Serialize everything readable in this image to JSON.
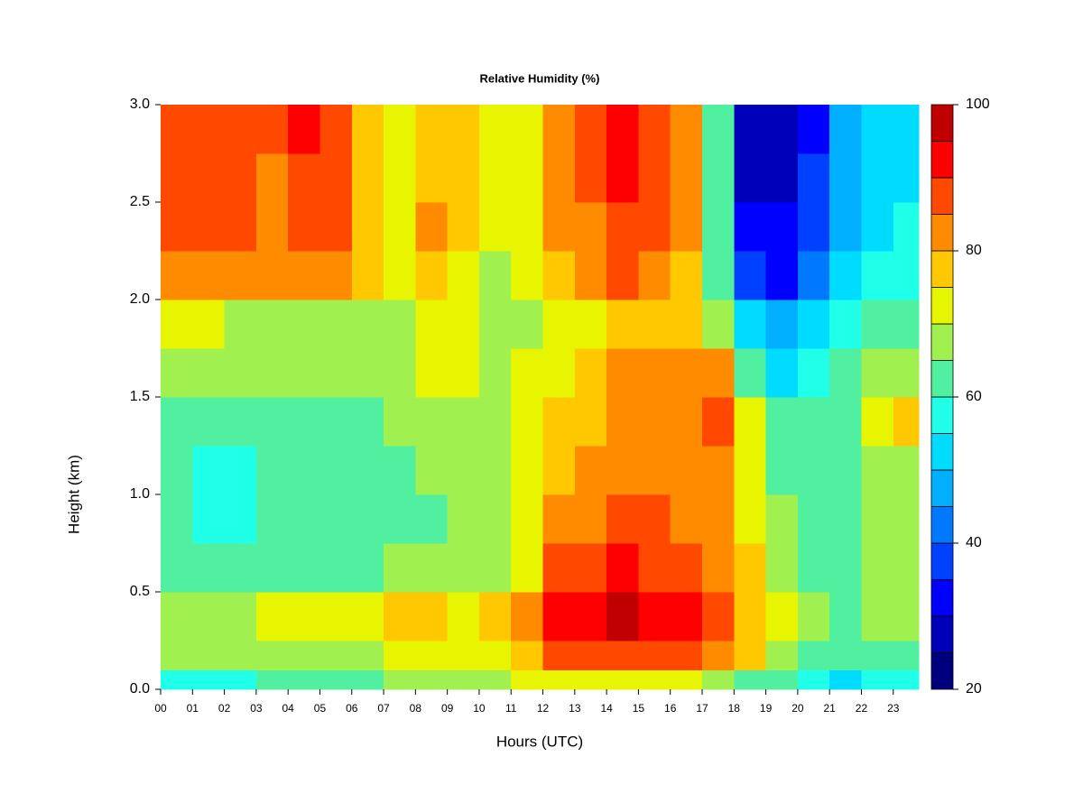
{
  "chart_data": {
    "type": "heatmap",
    "title": "Relative Humidity (%)",
    "xlabel": "Hours (UTC)",
    "ylabel": "Height (km)",
    "xlim": [
      0,
      23.8
    ],
    "ylim": [
      0,
      3
    ],
    "xticks": [
      {
        "value": 0,
        "label": "00"
      },
      {
        "value": 1,
        "label": "01"
      },
      {
        "value": 2,
        "label": "02"
      },
      {
        "value": 3,
        "label": "03"
      },
      {
        "value": 4,
        "label": "04"
      },
      {
        "value": 5,
        "label": "05"
      },
      {
        "value": 6,
        "label": "06"
      },
      {
        "value": 7,
        "label": "07"
      },
      {
        "value": 8,
        "label": "08"
      },
      {
        "value": 9,
        "label": "09"
      },
      {
        "value": 10,
        "label": "10"
      },
      {
        "value": 11,
        "label": "11"
      },
      {
        "value": 12,
        "label": "12"
      },
      {
        "value": 13,
        "label": "13"
      },
      {
        "value": 14,
        "label": "14"
      },
      {
        "value": 15,
        "label": "15"
      },
      {
        "value": 16,
        "label": "16"
      },
      {
        "value": 17,
        "label": "17"
      },
      {
        "value": 18,
        "label": "18"
      },
      {
        "value": 19,
        "label": "19"
      },
      {
        "value": 20,
        "label": "20"
      },
      {
        "value": 21,
        "label": "21"
      },
      {
        "value": 22,
        "label": "22"
      },
      {
        "value": 23,
        "label": "23"
      }
    ],
    "yticks": [
      {
        "value": 0,
        "label": "0.0"
      },
      {
        "value": 0.5,
        "label": "0.5"
      },
      {
        "value": 1,
        "label": "1.0"
      },
      {
        "value": 1.5,
        "label": "1.5"
      },
      {
        "value": 2,
        "label": "2.0"
      },
      {
        "value": 2.5,
        "label": "2.5"
      },
      {
        "value": 3,
        "label": "3.0"
      }
    ],
    "x_edges": [
      0,
      1,
      2,
      3,
      4,
      5,
      6,
      7,
      8,
      9,
      10,
      11,
      12,
      13,
      14,
      15,
      16,
      17,
      18,
      19,
      20,
      21,
      22,
      23,
      23.8
    ],
    "y_edges": [
      0,
      0.1,
      0.25,
      0.5,
      0.75,
      1.0,
      1.25,
      1.5,
      1.75,
      2.0,
      2.25,
      2.5,
      2.75,
      3.0
    ],
    "z": [
      [
        58,
        58,
        58,
        60,
        60,
        60,
        62,
        65,
        66,
        66,
        68,
        70,
        72,
        72,
        72,
        72,
        70,
        68,
        62,
        60,
        55,
        52,
        55,
        55
      ],
      [
        66,
        66,
        67,
        68,
        68,
        68,
        68,
        72,
        72,
        70,
        74,
        78,
        88,
        88,
        88,
        88,
        85,
        84,
        75,
        68,
        62,
        60,
        62,
        62
      ],
      [
        68,
        68,
        68,
        70,
        70,
        72,
        70,
        76,
        76,
        74,
        78,
        82,
        94,
        94,
        95,
        94,
        90,
        88,
        78,
        70,
        66,
        64,
        66,
        66
      ],
      [
        62,
        60,
        60,
        62,
        62,
        64,
        64,
        66,
        66,
        66,
        68,
        72,
        88,
        86,
        90,
        88,
        86,
        84,
        78,
        68,
        64,
        64,
        66,
        66
      ],
      [
        60,
        58,
        58,
        60,
        60,
        62,
        62,
        64,
        64,
        66,
        68,
        70,
        82,
        82,
        86,
        86,
        84,
        82,
        72,
        66,
        64,
        64,
        66,
        66
      ],
      [
        60,
        58,
        58,
        60,
        60,
        62,
        62,
        64,
        66,
        66,
        68,
        70,
        78,
        80,
        84,
        84,
        84,
        82,
        70,
        64,
        62,
        64,
        68,
        68
      ],
      [
        64,
        62,
        62,
        62,
        62,
        64,
        64,
        66,
        68,
        68,
        68,
        70,
        76,
        78,
        82,
        82,
        82,
        86,
        70,
        62,
        60,
        62,
        70,
        78
      ],
      [
        66,
        66,
        66,
        66,
        66,
        66,
        66,
        66,
        70,
        70,
        68,
        70,
        74,
        76,
        80,
        80,
        80,
        82,
        60,
        52,
        56,
        60,
        66,
        68
      ],
      [
        70,
        70,
        68,
        68,
        68,
        68,
        68,
        66,
        72,
        70,
        66,
        68,
        72,
        74,
        78,
        78,
        76,
        66,
        52,
        46,
        54,
        58,
        60,
        62
      ],
      [
        80,
        80,
        82,
        82,
        84,
        84,
        76,
        70,
        78,
        74,
        68,
        70,
        76,
        80,
        86,
        82,
        78,
        62,
        36,
        34,
        44,
        52,
        56,
        58
      ],
      [
        86,
        86,
        86,
        84,
        88,
        88,
        78,
        72,
        80,
        76,
        70,
        72,
        82,
        84,
        88,
        86,
        80,
        62,
        30,
        30,
        38,
        48,
        54,
        56
      ],
      [
        86,
        86,
        86,
        84,
        88,
        88,
        78,
        72,
        78,
        76,
        70,
        70,
        84,
        86,
        90,
        86,
        80,
        62,
        28,
        28,
        36,
        46,
        52,
        54
      ],
      [
        86,
        88,
        86,
        86,
        90,
        88,
        76,
        70,
        78,
        76,
        70,
        70,
        84,
        88,
        92,
        86,
        80,
        62,
        28,
        26,
        34,
        46,
        52,
        54
      ]
    ],
    "levels": [
      20,
      25,
      30,
      35,
      40,
      45,
      50,
      55,
      60,
      65,
      70,
      75,
      80,
      85,
      90,
      95,
      100
    ],
    "colors": [
      "#00007f",
      "#0000b8",
      "#0000ff",
      "#0040ff",
      "#0078ff",
      "#00b0ff",
      "#00dcff",
      "#20ffe8",
      "#50f0a0",
      "#a0f050",
      "#e8f500",
      "#ffc800",
      "#ff8c00",
      "#ff4800",
      "#ff0000",
      "#c00000",
      "#800000"
    ],
    "colorbar_lim": [
      20,
      100
    ],
    "colorbar_ticks": [
      20,
      40,
      60,
      80,
      100
    ]
  }
}
